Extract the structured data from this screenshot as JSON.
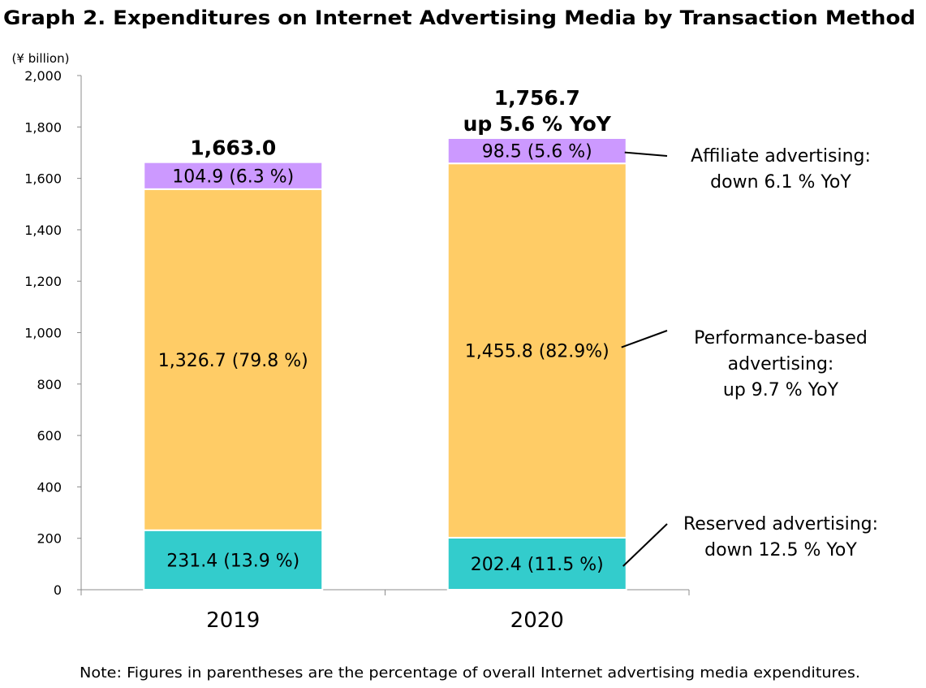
{
  "chart_data": {
    "type": "bar",
    "stacked": true,
    "title": "Graph 2. Expenditures on Internet Advertising Media by Transaction Method",
    "unit_label": "(¥ billion)",
    "ylim": [
      0,
      2000
    ],
    "yticks": [
      0,
      200,
      400,
      600,
      800,
      1000,
      1200,
      1400,
      1600,
      1800,
      2000
    ],
    "ytick_labels": [
      "0",
      "200",
      "400",
      "600",
      "800",
      "1,000",
      "1,200",
      "1,400",
      "1,600",
      "1,800",
      "2,000"
    ],
    "grid": false,
    "categories": [
      "2019",
      "2020"
    ],
    "series": [
      {
        "key": "reserved",
        "color": "#33CCCC",
        "values": [
          231.4,
          202.4
        ],
        "labels": [
          "231.4 (13.9 %)",
          "202.4 (11.5 %)"
        ]
      },
      {
        "key": "performance",
        "color": "#FFCC66",
        "values": [
          1326.7,
          1455.8
        ],
        "labels": [
          "1,326.7 (79.8 %)",
          "1,455.8 (82.9%)"
        ]
      },
      {
        "key": "affiliate",
        "color": "#CC99FF",
        "values": [
          104.9,
          98.5
        ],
        "labels": [
          "104.9 (6.3 %)",
          "98.5 (5.6 %)"
        ]
      }
    ],
    "totals": [
      {
        "lines": [
          "1,663.0"
        ]
      },
      {
        "lines": [
          "1,756.7",
          "up 5.6 % YoY"
        ]
      }
    ],
    "annotations": [
      {
        "series": "affiliate",
        "lines": [
          "Affiliate advertising:",
          "down 6.1 % YoY"
        ]
      },
      {
        "series": "performance",
        "lines": [
          "Performance-based",
          "advertising:",
          "up 9.7 % YoY"
        ]
      },
      {
        "series": "reserved",
        "lines": [
          "Reserved advertising:",
          "down 12.5 % YoY"
        ]
      }
    ],
    "note": "Note: Figures in parentheses are the percentage of overall Internet advertising media expenditures."
  }
}
